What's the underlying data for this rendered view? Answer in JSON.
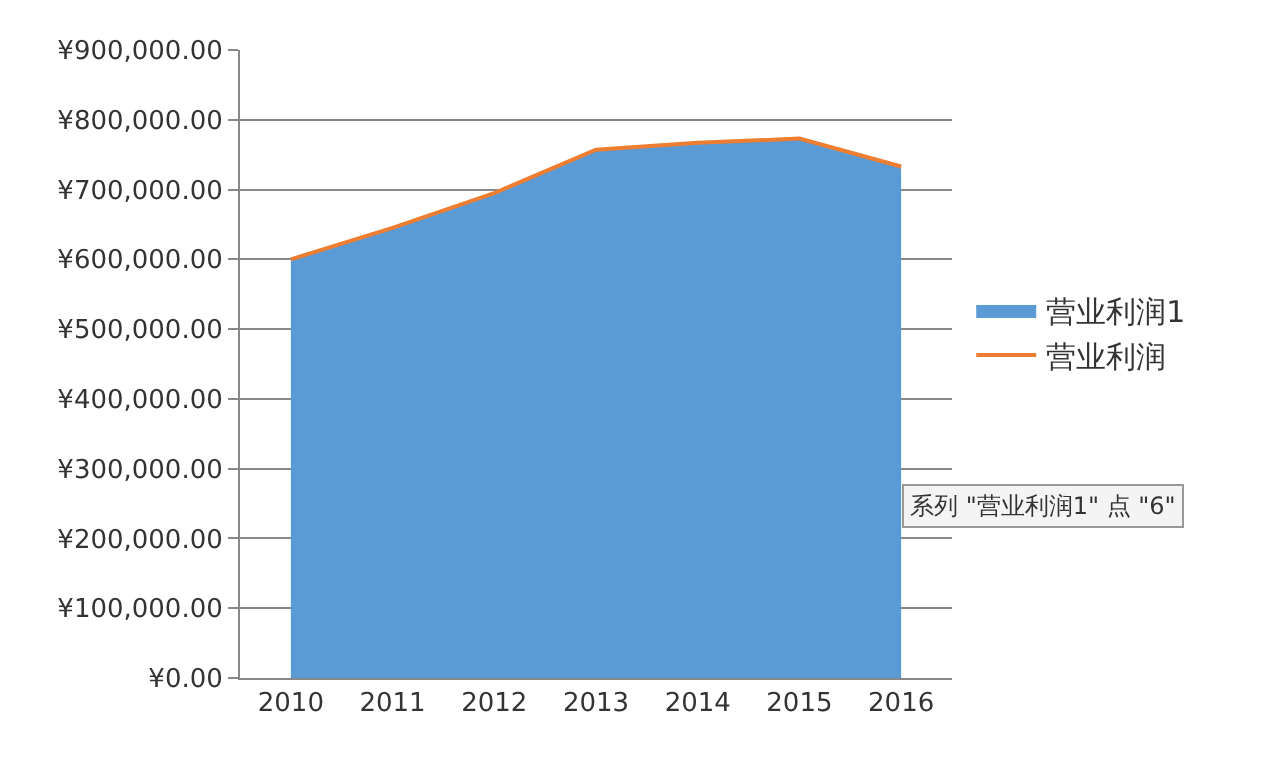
{
  "chart_data": {
    "type": "area",
    "categories": [
      "2010",
      "2011",
      "2012",
      "2013",
      "2014",
      "2015",
      "2016"
    ],
    "series": [
      {
        "name": "营业利润1",
        "color": "#5b9bd5",
        "values": [
          600000,
          645000,
          695000,
          757000,
          767000,
          773000,
          733000
        ]
      },
      {
        "name": "营业利润",
        "type": "line",
        "color": "#ed7d31",
        "values": [
          600000,
          645000,
          695000,
          757000,
          767000,
          773000,
          733000
        ]
      }
    ],
    "ylim": [
      0,
      900000
    ],
    "yticks": [
      {
        "value": 0,
        "label": "¥0.00"
      },
      {
        "value": 100000,
        "label": "¥100,000.00"
      },
      {
        "value": 200000,
        "label": "¥200,000.00"
      },
      {
        "value": 300000,
        "label": "¥300,000.00"
      },
      {
        "value": 400000,
        "label": "¥400,000.00"
      },
      {
        "value": 500000,
        "label": "¥500,000.00"
      },
      {
        "value": 600000,
        "label": "¥600,000.00"
      },
      {
        "value": 700000,
        "label": "¥700,000.00"
      },
      {
        "value": 800000,
        "label": "¥800,000.00"
      },
      {
        "value": 900000,
        "label": "¥900,000.00"
      }
    ],
    "grid": "y",
    "legend": "right",
    "annotations": [
      "系列 \"营业利润1\" 点 \"6\""
    ]
  }
}
